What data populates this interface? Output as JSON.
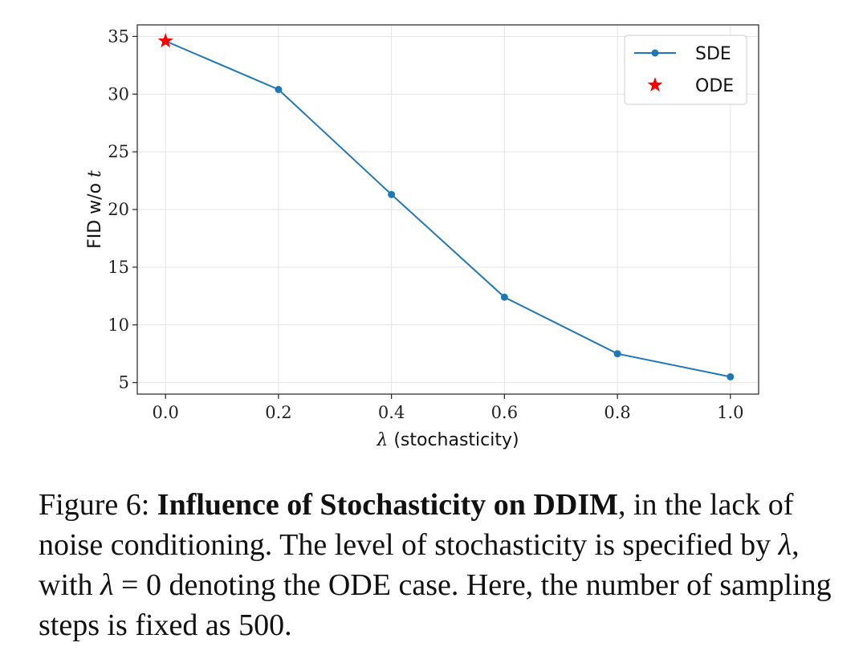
{
  "chart_data": {
    "type": "line",
    "xlabel_symbol": "λ",
    "xlabel_text": "(stochasticity)",
    "ylabel_text": "FID w/o",
    "ylabel_symbol": "t",
    "x": [
      0.0,
      0.2,
      0.4,
      0.6,
      0.8,
      1.0
    ],
    "series": [
      {
        "name": "SDE",
        "marker": "circle",
        "color": "#1f77b4",
        "x": [
          0.0,
          0.2,
          0.4,
          0.6,
          0.8,
          1.0
        ],
        "values": [
          34.6,
          30.4,
          21.3,
          12.4,
          7.5,
          5.5
        ]
      },
      {
        "name": "ODE",
        "marker": "star",
        "color": "#ff0000",
        "x": [
          0.0
        ],
        "values": [
          34.6
        ]
      }
    ],
    "xlim": [
      -0.05,
      1.05
    ],
    "ylim": [
      4,
      36
    ],
    "xticks": [
      0.0,
      0.2,
      0.4,
      0.6,
      0.8,
      1.0
    ],
    "xtick_labels": [
      "0.0",
      "0.2",
      "0.4",
      "0.6",
      "0.8",
      "1.0"
    ],
    "yticks": [
      5,
      10,
      15,
      20,
      25,
      30,
      35
    ],
    "ytick_labels": [
      "5",
      "10",
      "15",
      "20",
      "25",
      "30",
      "35"
    ],
    "grid": true,
    "legend": "top-right"
  },
  "caption": {
    "prefix": "Figure 6: ",
    "bold_title": "Influence of Stochasticity on DDIM",
    "text1": ", in the lack of noise conditioning. The level of stochasticity is specified by ",
    "lambda1": "λ",
    "text2": ", with ",
    "lambda2": "λ",
    "text3": " = 0 denoting the ODE case. Here, the number of sampling steps is fixed as 500."
  }
}
